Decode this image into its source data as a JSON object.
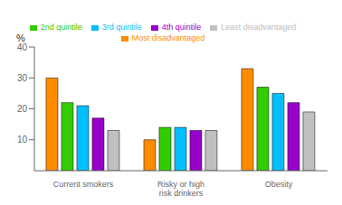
{
  "chart_data": {
    "type": "bar",
    "ylabel": "%",
    "categories": [
      "Current smokers",
      "Risky or high\nrisk drinkers",
      "Obesity"
    ],
    "series": [
      {
        "name": "Most disadvantaged",
        "color": "#FF8C00",
        "values": [
          30,
          10,
          33
        ]
      },
      {
        "name": "2nd quintile",
        "color": "#33CC00",
        "values": [
          22,
          14,
          27
        ]
      },
      {
        "name": "3rd quintile",
        "color": "#00BFFF",
        "values": [
          21,
          14,
          25
        ]
      },
      {
        "name": "4th quintile",
        "color": "#9900CC",
        "values": [
          17,
          13,
          22
        ]
      },
      {
        "name": "Least disadvantaged",
        "color": "#C0C0C0",
        "values": [
          13,
          13,
          19
        ]
      }
    ],
    "ylim": [
      0,
      40
    ],
    "yticks": [
      10,
      20,
      30,
      40
    ],
    "legend": "top"
  }
}
